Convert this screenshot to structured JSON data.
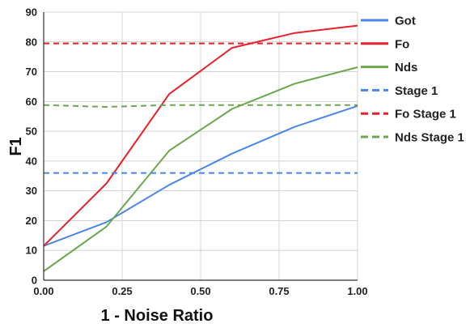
{
  "chart_data": {
    "type": "line",
    "title": "",
    "xlabel": "1 - Noise Ratio",
    "ylabel": "F1",
    "xlim": [
      0,
      1
    ],
    "ylim": [
      0,
      90
    ],
    "x_ticks": [
      "0.00",
      "0.25",
      "0.50",
      "0.75",
      "1.00"
    ],
    "x_tick_values": [
      0,
      0.25,
      0.5,
      0.75,
      1
    ],
    "y_ticks": [
      "0",
      "10",
      "20",
      "30",
      "40",
      "50",
      "60",
      "70",
      "80",
      "90"
    ],
    "y_tick_values": [
      0,
      10,
      20,
      30,
      40,
      50,
      60,
      70,
      80,
      90
    ],
    "grid": true,
    "legend_position": "right",
    "series": [
      {
        "name": "Got",
        "color": "#4a86e8",
        "dashed": false,
        "x": [
          0,
          0.2,
          0.4,
          0.6,
          0.8,
          1.0
        ],
        "y": [
          11.5,
          19.5,
          32,
          42.5,
          51.5,
          58.5
        ]
      },
      {
        "name": "Fo",
        "color": "#e8202a",
        "dashed": false,
        "x": [
          0,
          0.2,
          0.4,
          0.6,
          0.8,
          1.0
        ],
        "y": [
          11.5,
          32.5,
          62.5,
          78,
          83,
          85.5
        ]
      },
      {
        "name": "Nds",
        "color": "#6aa84f",
        "dashed": false,
        "x": [
          0,
          0.2,
          0.4,
          0.6,
          0.8,
          1.0
        ],
        "y": [
          3,
          18,
          43.5,
          57.5,
          66,
          71.5
        ]
      },
      {
        "name": "Stage 1",
        "color": "#4a86e8",
        "dashed": true,
        "x": [
          0,
          1.0
        ],
        "y": [
          36,
          36
        ]
      },
      {
        "name": "Fo Stage 1",
        "color": "#e8202a",
        "dashed": true,
        "x": [
          0,
          1.0
        ],
        "y": [
          79.5,
          79.5
        ]
      },
      {
        "name": "Nds Stage 1",
        "color": "#6aa84f",
        "dashed": true,
        "x": [
          0,
          0.2,
          0.4,
          0.6,
          0.8,
          1.0
        ],
        "y": [
          58.8,
          58.2,
          58.8,
          58.8,
          58.8,
          58.8
        ]
      }
    ]
  }
}
